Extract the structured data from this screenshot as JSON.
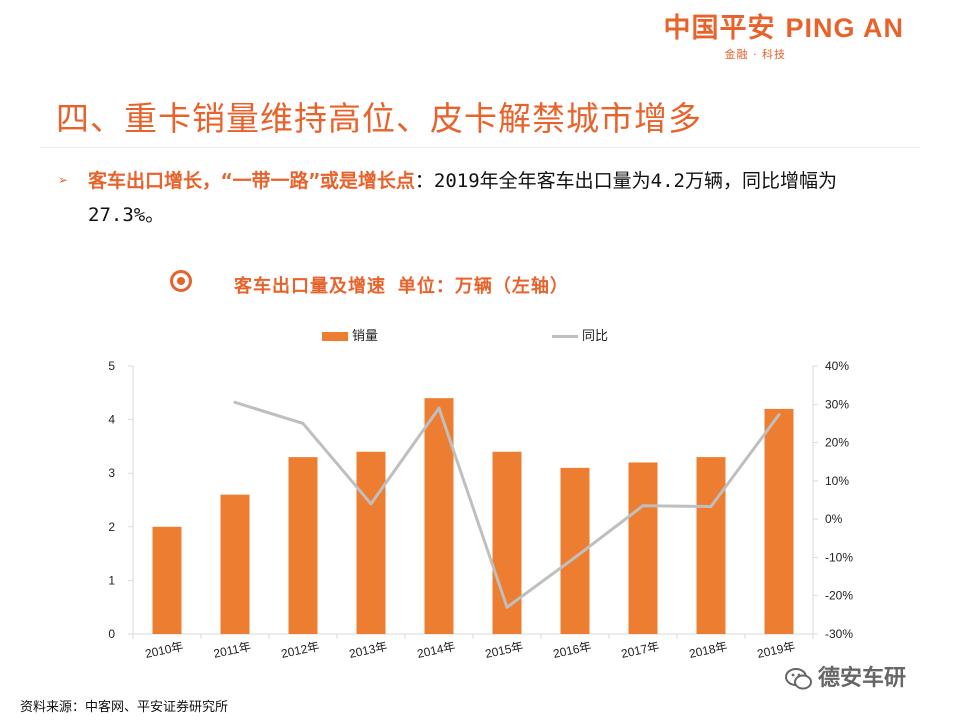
{
  "brand": {
    "name_cn": "中国平安",
    "name_en": "PING AN",
    "tagline": "金融 · 科技",
    "color": "#E8632B"
  },
  "page_title": "四、重卡销量维持高位、皮卡解禁城市增多",
  "bullet": {
    "strong": "客车出口增长，“一带一路”或是增长点",
    "rest": "：2019年全年客车出口量为4.2万辆，同比增幅为27.3%。"
  },
  "chart_subtitle": "客车出口量及增速 单位：万辆（左轴）",
  "legend": {
    "bar_label": "销量",
    "line_label": "同比"
  },
  "colors": {
    "bar": "#ED7D31",
    "line": "#BFBFBF",
    "accent": "#E8632B"
  },
  "chart_data": {
    "type": "bar",
    "categories": [
      "2010年",
      "2011年",
      "2012年",
      "2013年",
      "2014年",
      "2015年",
      "2016年",
      "2017年",
      "2018年",
      "2019年"
    ],
    "series": [
      {
        "name": "销量",
        "type": "bar",
        "axis": "left",
        "values": [
          2.0,
          2.6,
          3.3,
          3.4,
          4.4,
          3.4,
          3.1,
          3.2,
          3.3,
          4.2
        ]
      },
      {
        "name": "同比",
        "type": "line",
        "axis": "right",
        "values": [
          null,
          30.5,
          25.0,
          4.0,
          29.0,
          -23.0,
          -10.0,
          3.5,
          3.3,
          27.3
        ]
      }
    ],
    "ylim": [
      0,
      5
    ],
    "yticks": [
      "0",
      "1",
      "2",
      "3",
      "4",
      "5"
    ],
    "y2lim": [
      -30,
      40
    ],
    "y2ticks": [
      "-30%",
      "-20%",
      "-10%",
      "0%",
      "10%",
      "20%",
      "30%",
      "40%"
    ],
    "xlabel": "",
    "ylabel": "",
    "grid": false,
    "legend_position": "top"
  },
  "source": "资料来源：中客网、平安证券研究所",
  "watermark": "德安车研"
}
